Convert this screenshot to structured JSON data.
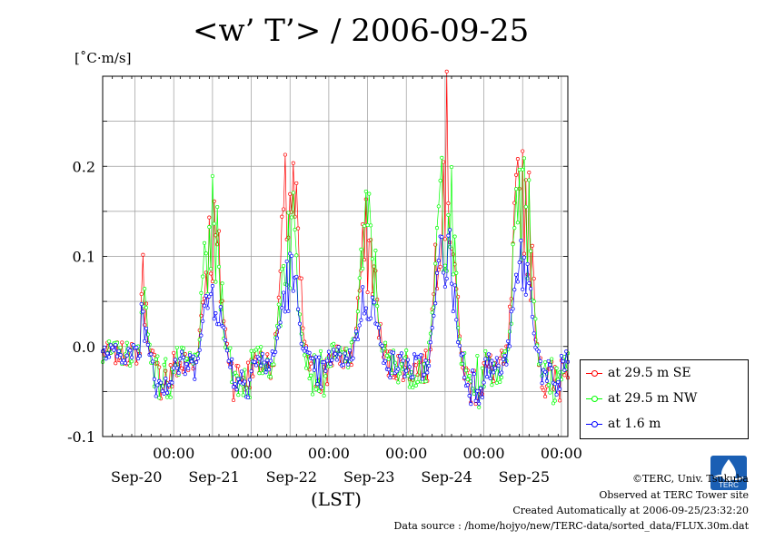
{
  "chart_data": {
    "type": "line",
    "title": "<w’ T’> / 2006-09-25",
    "ylabel": "[˚C·m/s]",
    "xlabel": "(LST)",
    "ylim": [
      -0.1,
      0.3
    ],
    "y_ticks": [
      "0.2",
      "0.1",
      "0.0",
      "-0.1"
    ],
    "y_tick_values": [
      0.2,
      0.1,
      0.0,
      -0.1
    ],
    "x_range_hours": [
      -22,
      122
    ],
    "x_tick_labels": [
      "00:00",
      "00:00",
      "00:00",
      "00:00",
      "00:00",
      "00:00"
    ],
    "x_date_labels": [
      "Sep-20",
      "Sep-21",
      "Sep-22",
      "Sep-23",
      "Sep-24",
      "Sep-25"
    ],
    "x_tick_hours": [
      0,
      24,
      48,
      72,
      96,
      120
    ],
    "grid": true,
    "legend_position": "right",
    "series": [
      {
        "name": "at 29.5 m SE",
        "color": "#ff0000"
      },
      {
        "name": "at 29.5 m NW",
        "color": "#00ff00"
      },
      {
        "name": "at 1.6 m",
        "color": "#0000ff"
      }
    ]
  },
  "footer": {
    "copyright": "©TERC, Univ. Tsukuba",
    "observed": "Observed at TERC Tower site",
    "created": "Created Automatically at 2006-09-25/23:32:20",
    "source": "Data source : /home/hojyo/new/TERC-data/sorted_data/FLUX.30m.dat"
  },
  "logo_text": "TERC"
}
